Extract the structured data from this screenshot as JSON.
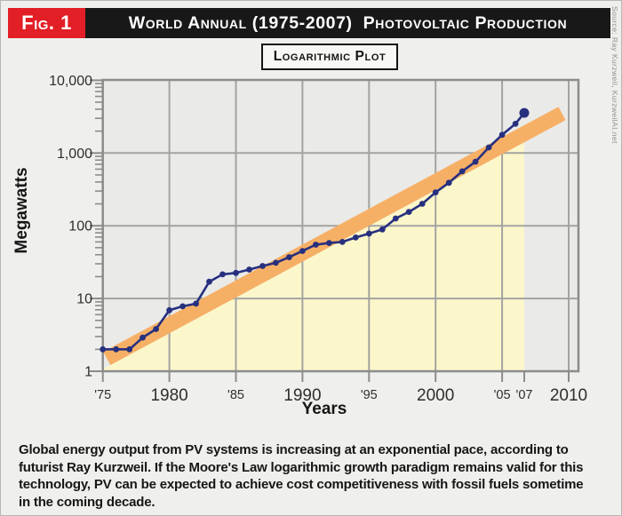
{
  "figure": {
    "badge": "Fig. 1",
    "title": "World Annual (1975-2007)  Photovoltaic Production",
    "source_credit": "Source: Ray Kurzweil, KurzweilAI.net",
    "plot_type_label": "Logarithmic Plot"
  },
  "chart_data": {
    "type": "line",
    "scale": "log-y",
    "title": "World Annual (1975-2007) Photovoltaic Production",
    "xlabel": "Years",
    "ylabel": "Megawatts",
    "xlim": [
      1975,
      2010
    ],
    "ylim": [
      1,
      10000
    ],
    "grid": true,
    "x": [
      1975,
      1976,
      1977,
      1978,
      1979,
      1980,
      1981,
      1982,
      1983,
      1984,
      1985,
      1986,
      1987,
      1988,
      1989,
      1990,
      1991,
      1992,
      1993,
      1994,
      1995,
      1996,
      1997,
      1998,
      1999,
      2000,
      2001,
      2002,
      2003,
      2004,
      2005,
      2006,
      2007
    ],
    "series": [
      {
        "name": "World annual PV production (MW)",
        "values": [
          2,
          2,
          2,
          2.9,
          3.8,
          6.9,
          7.8,
          8.5,
          17,
          21.5,
          22.5,
          25,
          28,
          31,
          37,
          45,
          55,
          58,
          60,
          69,
          78,
          89,
          126,
          155,
          200,
          288,
          390,
          560,
          760,
          1195,
          1780,
          2520,
          3560
        ]
      }
    ],
    "trend_band": {
      "description": "exponential growth trend band",
      "start_year": 1975.3,
      "start_value": 1.5,
      "end_year": 2009.5,
      "end_value": 3500
    },
    "shaded_region": {
      "description": "area below trend band shaded through 2007",
      "end_year": 2007
    },
    "y_ticks": [
      {
        "label": "1",
        "value": 1
      },
      {
        "label": "10",
        "value": 10
      },
      {
        "label": "100",
        "value": 100
      },
      {
        "label": "1,000",
        "value": 1000
      },
      {
        "label": "10,000",
        "value": 10000
      }
    ],
    "x_ticks": [
      {
        "label": "'75",
        "year": 1975,
        "size": "small"
      },
      {
        "label": "1980",
        "year": 1980,
        "size": "large"
      },
      {
        "label": "'85",
        "year": 1985,
        "size": "small"
      },
      {
        "label": "1990",
        "year": 1990,
        "size": "large"
      },
      {
        "label": "'95",
        "year": 1995,
        "size": "small"
      },
      {
        "label": "2000",
        "year": 2000,
        "size": "large"
      },
      {
        "label": "'05",
        "year": 2005,
        "size": "small"
      },
      {
        "label": "'07",
        "year": 2007,
        "size": "small"
      },
      {
        "label": "2010",
        "year": 2010,
        "size": "large"
      }
    ]
  },
  "caption": "Global energy output from PV systems is increasing at an exponential pace, according to futurist Ray Kurzweil. If the Moore's Law logarithmic growth paradigm remains valid for this technology, PV can be expected to achieve cost competitiveness with fossil fuels sometime in the coming decade.",
  "colors": {
    "badge_red": "#E21F26",
    "header_black": "#181818",
    "line_blue": "#27307F",
    "trend_orange": "#F6B066",
    "shade_yellow": "#FCF7CB",
    "plot_bg": "#EAEAE8",
    "grid_gray": "#A3A3A1",
    "frame_gray": "#8C8C8A"
  }
}
